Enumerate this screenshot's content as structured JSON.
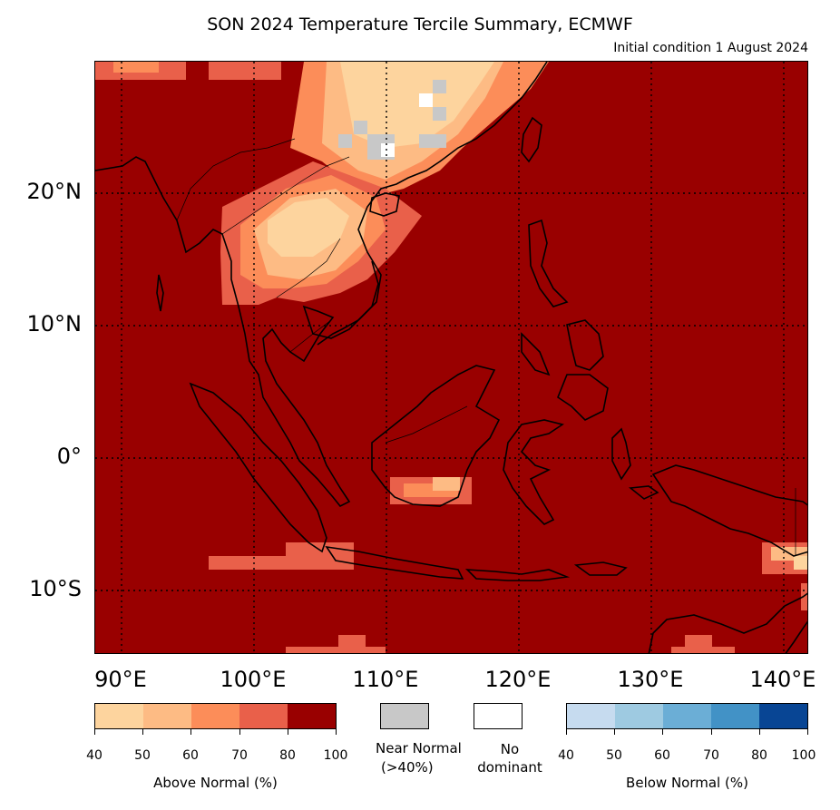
{
  "title": "SON 2024 Temperature Tercile Summary, ECMWF",
  "subtitle": "Initial condition 1 August 2024",
  "map": {
    "lat_labels": [
      "20°N",
      "10°N",
      "0°",
      "10°S"
    ],
    "lon_labels": [
      "90°E",
      "100°E",
      "110°E",
      "120°E",
      "130°E",
      "140°E"
    ],
    "extent": {
      "lon_min": 88,
      "lon_max": 142,
      "lat_min": -15,
      "lat_max": 30
    },
    "grid_lons": [
      90,
      100,
      110,
      120,
      130,
      140
    ],
    "grid_lats": [
      20,
      10,
      0,
      -10
    ]
  },
  "legend": {
    "above_normal": {
      "label": "Above Normal (%)",
      "ticks": [
        "40",
        "50",
        "60",
        "70",
        "80",
        "100"
      ],
      "colors": [
        "#fdd49e",
        "#fdbb84",
        "#fc8d59",
        "#e9604a",
        "#990000"
      ]
    },
    "near_normal": {
      "label_line1": "Near Normal",
      "label_line2": "(>40%)",
      "color": "#c8c8c8"
    },
    "no_dominant": {
      "label_line1": "No",
      "label_line2": "dominant",
      "color": "#ffffff"
    },
    "below_normal": {
      "label": "Below Normal (%)",
      "ticks": [
        "40",
        "50",
        "60",
        "70",
        "80",
        "100"
      ],
      "colors": [
        "#c6dbef",
        "#9ecae1",
        "#6baed6",
        "#4292c6",
        "#084594"
      ]
    }
  }
}
